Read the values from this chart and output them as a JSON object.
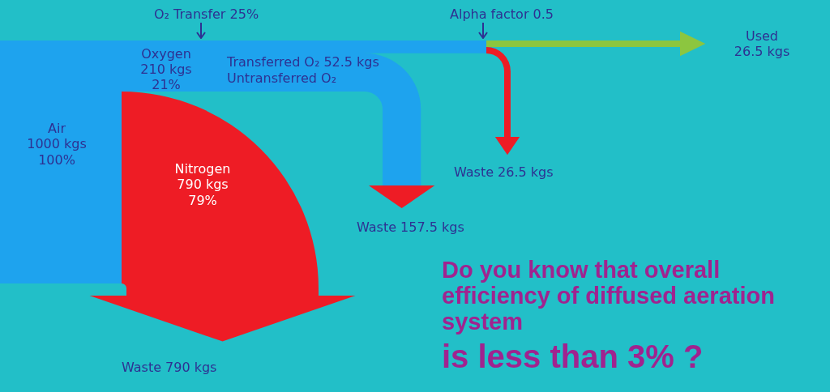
{
  "chart_data": {
    "type": "other",
    "categories": [
      "Air",
      "Oxygen",
      "Nitrogen",
      "Transferred O₂",
      "Untransferred O₂",
      "Used",
      "Waste",
      "Waste",
      "Waste"
    ],
    "values": [
      1000,
      210,
      790,
      52.5,
      null,
      26.5,
      26.5,
      157.5,
      790
    ],
    "value_labels": [
      "1000 kgs",
      "210 kgs",
      "790 kgs",
      "52.5 kgs",
      null,
      "26.5 kgs",
      "26.5 kgs",
      "157.5 kgs",
      "790 kgs"
    ],
    "colors": [
      "#1ea3ee",
      "#1ea3ee",
      "#ee1c25",
      "#1ea3ee",
      "#1ea3ee",
      "#8cc63f",
      "#ee1c25",
      "#ee1c25",
      "#ee1c25"
    ],
    "annotations": [
      "100%",
      "21%",
      "79%",
      "O₂ Transfer  25%",
      "Alpha factor 0.5",
      "Do you know that overall efficiency of diffused aeration system",
      "is less than 3% ?"
    ]
  }
}
